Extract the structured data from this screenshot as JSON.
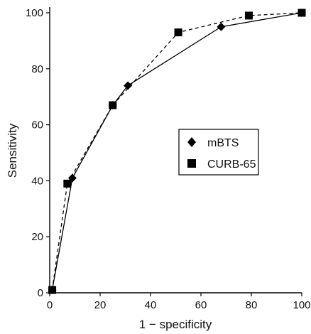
{
  "chart_data": {
    "type": "line",
    "xlabel": "1 − specificity",
    "ylabel": "Sensitivity",
    "xlim": [
      0,
      100
    ],
    "ylim": [
      0,
      100
    ],
    "xticks": [
      "0",
      "20",
      "40",
      "60",
      "80",
      "100"
    ],
    "yticks": [
      "0",
      "20",
      "40",
      "60",
      "80",
      "100"
    ],
    "grid": false,
    "legend_position": "right-center",
    "series": [
      {
        "name": "mBTS",
        "marker": "diamond",
        "line_style": "solid",
        "color": "#000000",
        "x": [
          1,
          9,
          25,
          31,
          68,
          100
        ],
        "y": [
          1,
          41,
          67,
          74,
          95,
          100
        ]
      },
      {
        "name": "CURB-65",
        "marker": "square",
        "line_style": "dashed",
        "color": "#000000",
        "x": [
          1,
          7,
          25,
          51,
          79,
          100
        ],
        "y": [
          1,
          39,
          67,
          93,
          99,
          100
        ]
      }
    ]
  }
}
